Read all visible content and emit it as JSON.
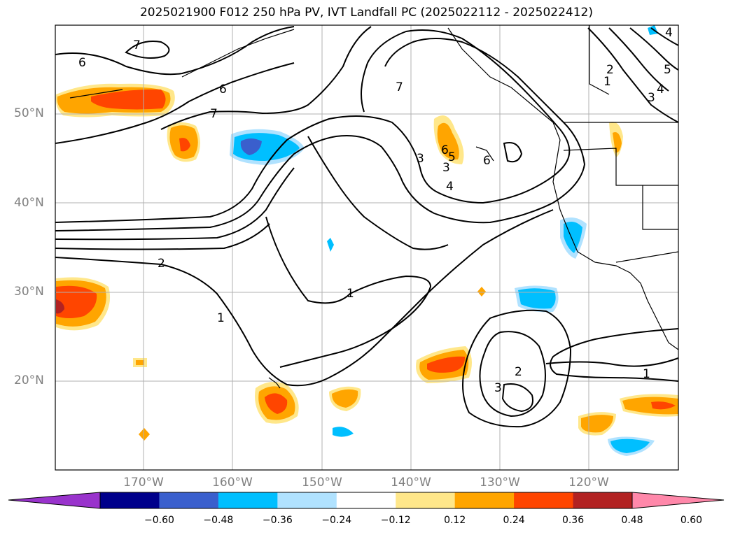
{
  "title": "2025021900 F012 250 hPa PV, IVT Landfall PC (2025022112 - 2025022412)",
  "lat_labels": [
    "50°N",
    "40°N",
    "30°N",
    "20°N"
  ],
  "lon_labels": [
    "170°W",
    "160°W",
    "150°W",
    "140°W",
    "130°W",
    "120°W"
  ],
  "contour_labels": [
    "7",
    "6",
    "6",
    "7",
    "2",
    "1",
    "7",
    "3",
    "3",
    "4",
    "5",
    "6",
    "6",
    "2",
    "1",
    "1",
    "3",
    "2",
    "1",
    "3",
    "4",
    "5",
    "4"
  ],
  "colorbar": {
    "ticks": [
      "−0.60",
      "−0.48",
      "−0.36",
      "−0.24",
      "−0.12",
      "0.12",
      "0.24",
      "0.36",
      "0.48",
      "0.60"
    ],
    "colors": [
      "#9933cc",
      "#00008b",
      "#3a5fcd",
      "#00bfff",
      "#b0e2ff",
      "#ffffff",
      "#ffe78a",
      "#ffa500",
      "#ff4500",
      "#b22222",
      "#ff88aa"
    ]
  },
  "legend_colors": {
    "coast": "#000000",
    "grid": "#b0b0b0"
  }
}
